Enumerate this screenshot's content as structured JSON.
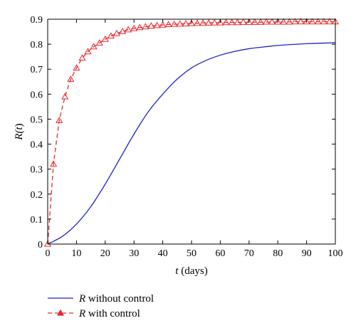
{
  "chart_data": {
    "type": "line",
    "xlabel": {
      "var": "t",
      "rest": " (days)"
    },
    "ylabel": {
      "pre": "R(",
      "var": "t",
      "post": ")"
    },
    "xlim": [
      0,
      100
    ],
    "ylim": [
      0,
      0.9
    ],
    "xticks": [
      0,
      10,
      20,
      30,
      40,
      50,
      60,
      70,
      80,
      90,
      100
    ],
    "yticks": [
      0,
      0.1,
      0.2,
      0.3,
      0.4,
      0.5,
      0.6,
      0.7,
      0.8,
      0.9
    ],
    "ytick_labels": [
      "0",
      "0.1",
      "0.2",
      "0.3",
      "0.4",
      "0.5",
      "0.6",
      "0.7",
      "0.8",
      "0.9"
    ],
    "legend_position": "bottom-left, below plot",
    "series": [
      {
        "name": {
          "var": "R",
          "rest": " without control"
        },
        "color": "#1f24c8",
        "style": "solid",
        "marker": "none",
        "x": [
          0,
          5,
          10,
          15,
          20,
          25,
          30,
          35,
          40,
          45,
          50,
          55,
          60,
          65,
          70,
          75,
          80,
          85,
          90,
          95,
          100
        ],
        "y": [
          0,
          0.03,
          0.08,
          0.15,
          0.24,
          0.34,
          0.44,
          0.53,
          0.6,
          0.66,
          0.705,
          0.735,
          0.756,
          0.771,
          0.782,
          0.789,
          0.795,
          0.799,
          0.802,
          0.804,
          0.806
        ]
      },
      {
        "name": {
          "var": "R",
          "rest": " with control"
        },
        "color": "#e8282b",
        "style": "dashed",
        "marker": "triangle",
        "x": [
          0,
          2,
          4,
          6,
          8,
          10,
          12,
          14,
          16,
          18,
          20,
          22,
          24,
          26,
          28,
          30,
          32,
          34,
          36,
          38,
          40,
          42,
          44,
          46,
          48,
          50,
          52,
          54,
          56,
          58,
          60,
          62,
          64,
          66,
          68,
          70,
          72,
          74,
          76,
          78,
          80,
          82,
          84,
          86,
          88,
          90,
          92,
          94,
          96,
          98,
          100
        ],
        "y": [
          0,
          0.32,
          0.495,
          0.59,
          0.66,
          0.705,
          0.745,
          0.77,
          0.79,
          0.805,
          0.82,
          0.833,
          0.843,
          0.851,
          0.858,
          0.863,
          0.867,
          0.87,
          0.873,
          0.875,
          0.877,
          0.879,
          0.88,
          0.881,
          0.882,
          0.883,
          0.884,
          0.885,
          0.885,
          0.886,
          0.886,
          0.887,
          0.887,
          0.887,
          0.888,
          0.888,
          0.888,
          0.888,
          0.889,
          0.889,
          0.889,
          0.889,
          0.889,
          0.89,
          0.89,
          0.89,
          0.89,
          0.89,
          0.89,
          0.89,
          0.89
        ]
      }
    ]
  }
}
